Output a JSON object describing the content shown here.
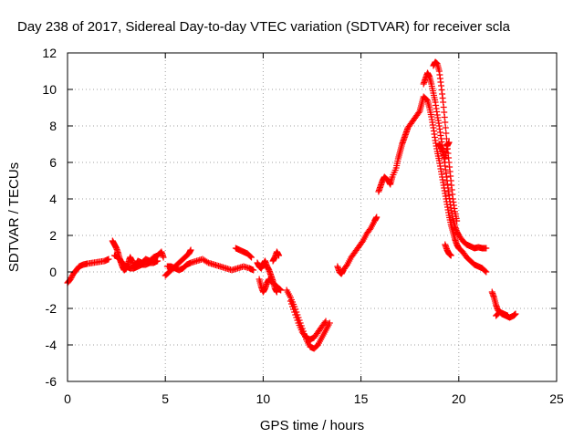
{
  "chart_data": {
    "type": "scatter",
    "title": "Day 238 of 2017, Sidereal Day-to-day VTEC variation (SDTVAR) for receiver scla",
    "xlabel": "GPS time / hours",
    "ylabel": "SDTVAR / TECUs",
    "xlim": [
      0,
      25
    ],
    "ylim": [
      -6,
      12
    ],
    "xticks": [
      0,
      5,
      10,
      15,
      20,
      25
    ],
    "yticks": [
      -6,
      -4,
      -2,
      0,
      2,
      4,
      6,
      8,
      10,
      12
    ],
    "grid": true,
    "marker": "plus",
    "color": "#ff0000",
    "series": [
      {
        "name": "SDTVAR",
        "segments": [
          [
            [
              0.0,
              -0.6
            ],
            [
              0.15,
              -0.4
            ],
            [
              0.3,
              -0.1
            ],
            [
              0.45,
              0.1
            ],
            [
              0.6,
              0.3
            ],
            [
              0.8,
              0.4
            ],
            [
              1.0,
              0.45
            ],
            [
              1.3,
              0.5
            ],
            [
              1.6,
              0.55
            ],
            [
              1.9,
              0.6
            ],
            [
              2.1,
              0.7
            ]
          ],
          [
            [
              2.3,
              1.7
            ],
            [
              2.4,
              1.5
            ],
            [
              2.5,
              1.3
            ],
            [
              2.6,
              1.0
            ],
            [
              2.7,
              0.6
            ],
            [
              2.8,
              0.3
            ],
            [
              2.9,
              0.1
            ],
            [
              3.0,
              0.2
            ],
            [
              3.1,
              0.5
            ],
            [
              3.2,
              0.8
            ],
            [
              3.3,
              0.6
            ],
            [
              3.4,
              0.3
            ],
            [
              3.5,
              0.4
            ],
            [
              3.6,
              0.6
            ],
            [
              3.8,
              0.5
            ],
            [
              4.0,
              0.7
            ],
            [
              4.2,
              0.6
            ],
            [
              4.4,
              0.8
            ],
            [
              4.6,
              0.9
            ],
            [
              4.8,
              1.1
            ],
            [
              4.9,
              0.8
            ]
          ],
          [
            [
              2.4,
              0.9
            ],
            [
              2.6,
              0.8
            ],
            [
              2.8,
              0.5
            ],
            [
              3.0,
              0.3
            ],
            [
              3.2,
              0.2
            ],
            [
              3.4,
              0.2
            ],
            [
              3.6,
              0.3
            ],
            [
              3.8,
              0.4
            ],
            [
              4.0,
              0.4
            ],
            [
              4.2,
              0.5
            ],
            [
              4.4,
              0.5
            ],
            [
              4.6,
              0.6
            ]
          ],
          [
            [
              5.0,
              -0.2
            ],
            [
              5.2,
              0.0
            ],
            [
              5.4,
              0.2
            ],
            [
              5.6,
              0.4
            ],
            [
              5.8,
              0.6
            ],
            [
              6.0,
              0.8
            ],
            [
              6.2,
              1.0
            ],
            [
              6.3,
              1.2
            ]
          ],
          [
            [
              5.1,
              0.3
            ],
            [
              5.3,
              0.3
            ],
            [
              5.5,
              0.2
            ],
            [
              5.7,
              0.1
            ],
            [
              5.9,
              0.2
            ],
            [
              6.1,
              0.4
            ],
            [
              6.3,
              0.5
            ],
            [
              6.6,
              0.6
            ],
            [
              6.9,
              0.7
            ],
            [
              7.2,
              0.5
            ],
            [
              7.5,
              0.4
            ],
            [
              7.8,
              0.3
            ],
            [
              8.1,
              0.2
            ],
            [
              8.4,
              0.1
            ],
            [
              8.7,
              0.2
            ],
            [
              9.0,
              0.3
            ],
            [
              9.3,
              0.2
            ],
            [
              9.5,
              0.1
            ]
          ],
          [
            [
              8.6,
              1.3
            ],
            [
              8.8,
              1.2
            ],
            [
              9.0,
              1.1
            ],
            [
              9.2,
              1.0
            ],
            [
              9.4,
              0.8
            ]
          ],
          [
            [
              9.7,
              0.5
            ],
            [
              9.8,
              0.3
            ],
            [
              9.9,
              0.2
            ],
            [
              10.0,
              0.4
            ],
            [
              10.1,
              0.6
            ],
            [
              10.2,
              0.3
            ],
            [
              10.3,
              0.1
            ],
            [
              10.4,
              -0.2
            ],
            [
              10.5,
              -0.5
            ],
            [
              10.6,
              -0.9
            ],
            [
              10.7,
              -1.1
            ]
          ],
          [
            [
              9.8,
              -0.4
            ],
            [
              9.9,
              -0.8
            ],
            [
              10.0,
              -1.1
            ],
            [
              10.1,
              -0.9
            ],
            [
              10.2,
              -0.6
            ],
            [
              10.3,
              -0.4
            ],
            [
              10.4,
              -0.5
            ],
            [
              10.6,
              -0.7
            ],
            [
              10.8,
              -0.9
            ],
            [
              10.9,
              -1.0
            ]
          ],
          [
            [
              10.5,
              0.6
            ],
            [
              10.6,
              0.8
            ],
            [
              10.7,
              1.1
            ],
            [
              10.8,
              0.9
            ]
          ],
          [
            [
              11.2,
              -1.0
            ],
            [
              11.4,
              -1.4
            ],
            [
              11.6,
              -1.9
            ],
            [
              11.8,
              -2.5
            ],
            [
              12.0,
              -3.1
            ],
            [
              12.2,
              -3.7
            ],
            [
              12.4,
              -4.1
            ],
            [
              12.6,
              -4.2
            ],
            [
              12.8,
              -4.0
            ],
            [
              13.0,
              -3.6
            ],
            [
              13.2,
              -3.2
            ],
            [
              13.4,
              -2.8
            ]
          ],
          [
            [
              11.4,
              -1.6
            ],
            [
              11.6,
              -2.2
            ],
            [
              11.8,
              -2.8
            ],
            [
              12.0,
              -3.3
            ],
            [
              12.2,
              -3.6
            ],
            [
              12.4,
              -3.7
            ],
            [
              12.6,
              -3.6
            ],
            [
              12.8,
              -3.3
            ],
            [
              13.0,
              -3.0
            ],
            [
              13.2,
              -2.7
            ]
          ],
          [
            [
              13.8,
              0.3
            ],
            [
              13.9,
              0.0
            ],
            [
              14.0,
              -0.1
            ],
            [
              14.1,
              0.1
            ],
            [
              14.3,
              0.4
            ],
            [
              14.5,
              0.8
            ],
            [
              14.7,
              1.1
            ],
            [
              14.9,
              1.4
            ],
            [
              15.1,
              1.7
            ],
            [
              15.3,
              2.1
            ],
            [
              15.5,
              2.4
            ],
            [
              15.7,
              2.8
            ],
            [
              15.8,
              3.0
            ]
          ],
          [
            [
              15.9,
              4.4
            ],
            [
              16.0,
              4.7
            ],
            [
              16.1,
              5.0
            ],
            [
              16.2,
              5.2
            ],
            [
              16.4,
              5.0
            ],
            [
              16.5,
              4.8
            ],
            [
              16.6,
              5.2
            ],
            [
              16.8,
              5.7
            ],
            [
              16.9,
              6.2
            ],
            [
              17.0,
              6.6
            ],
            [
              17.1,
              7.0
            ],
            [
              17.2,
              7.3
            ],
            [
              17.3,
              7.6
            ],
            [
              17.4,
              7.9
            ],
            [
              17.6,
              8.2
            ],
            [
              17.8,
              8.5
            ],
            [
              18.0,
              8.8
            ],
            [
              18.1,
              9.2
            ],
            [
              18.2,
              9.6
            ],
            [
              18.4,
              9.4
            ],
            [
              18.5,
              9.0
            ],
            [
              18.6,
              8.5
            ],
            [
              18.7,
              7.9
            ],
            [
              18.8,
              7.2
            ],
            [
              18.9,
              6.6
            ],
            [
              19.0,
              6.1
            ],
            [
              19.1,
              5.5
            ],
            [
              19.2,
              4.9
            ],
            [
              19.3,
              4.3
            ],
            [
              19.4,
              3.7
            ],
            [
              19.5,
              3.1
            ],
            [
              19.6,
              2.6
            ],
            [
              19.7,
              2.2
            ],
            [
              19.8,
              1.8
            ],
            [
              19.9,
              1.5
            ],
            [
              20.0,
              1.3
            ],
            [
              20.2,
              1.1
            ],
            [
              20.4,
              0.8
            ],
            [
              20.6,
              0.6
            ],
            [
              20.8,
              0.4
            ],
            [
              21.0,
              0.3
            ],
            [
              21.2,
              0.2
            ],
            [
              21.4,
              0.0
            ]
          ],
          [
            [
              18.2,
              10.3
            ],
            [
              18.3,
              10.6
            ],
            [
              18.4,
              10.9
            ],
            [
              18.5,
              10.7
            ],
            [
              18.6,
              10.3
            ],
            [
              18.7,
              9.8
            ],
            [
              18.8,
              9.3
            ],
            [
              18.9,
              8.6
            ],
            [
              19.0,
              8.0
            ],
            [
              19.1,
              7.3
            ],
            [
              19.2,
              6.6
            ],
            [
              19.3,
              5.8
            ],
            [
              19.4,
              5.0
            ],
            [
              19.5,
              4.2
            ],
            [
              19.6,
              3.5
            ],
            [
              19.7,
              2.9
            ],
            [
              19.8,
              2.5
            ],
            [
              19.9,
              2.2
            ],
            [
              20.0,
              2.0
            ],
            [
              20.2,
              1.7
            ],
            [
              20.4,
              1.5
            ],
            [
              20.6,
              1.4
            ],
            [
              20.8,
              1.3
            ],
            [
              21.0,
              1.35
            ],
            [
              21.2,
              1.3
            ],
            [
              21.4,
              1.3
            ]
          ],
          [
            [
              18.7,
              11.3
            ],
            [
              18.8,
              11.5
            ],
            [
              18.9,
              11.4
            ],
            [
              19.0,
              11.0
            ],
            [
              19.1,
              10.2
            ],
            [
              19.2,
              9.3
            ],
            [
              19.3,
              8.2
            ],
            [
              19.4,
              7.0
            ],
            [
              19.5,
              6.0
            ],
            [
              19.6,
              5.0
            ],
            [
              19.7,
              4.0
            ],
            [
              19.8,
              3.3
            ],
            [
              19.9,
              2.8
            ]
          ],
          [
            [
              19.0,
              7.0
            ],
            [
              19.1,
              6.8
            ],
            [
              19.2,
              6.5
            ],
            [
              19.3,
              6.2
            ],
            [
              19.4,
              6.9
            ],
            [
              19.5,
              7.1
            ]
          ],
          [
            [
              19.3,
              1.5
            ],
            [
              19.4,
              1.2
            ],
            [
              19.5,
              1.0
            ],
            [
              19.6,
              0.9
            ]
          ],
          [
            [
              21.7,
              -1.1
            ],
            [
              21.8,
              -1.4
            ],
            [
              21.9,
              -1.8
            ],
            [
              22.0,
              -2.1
            ],
            [
              22.2,
              -2.3
            ],
            [
              22.4,
              -2.4
            ],
            [
              22.6,
              -2.5
            ],
            [
              22.8,
              -2.4
            ],
            [
              22.9,
              -2.3
            ]
          ],
          [
            [
              21.9,
              -2.4
            ],
            [
              22.1,
              -2.2
            ],
            [
              22.3,
              -2.3
            ],
            [
              22.5,
              -2.4
            ]
          ]
        ]
      }
    ]
  }
}
